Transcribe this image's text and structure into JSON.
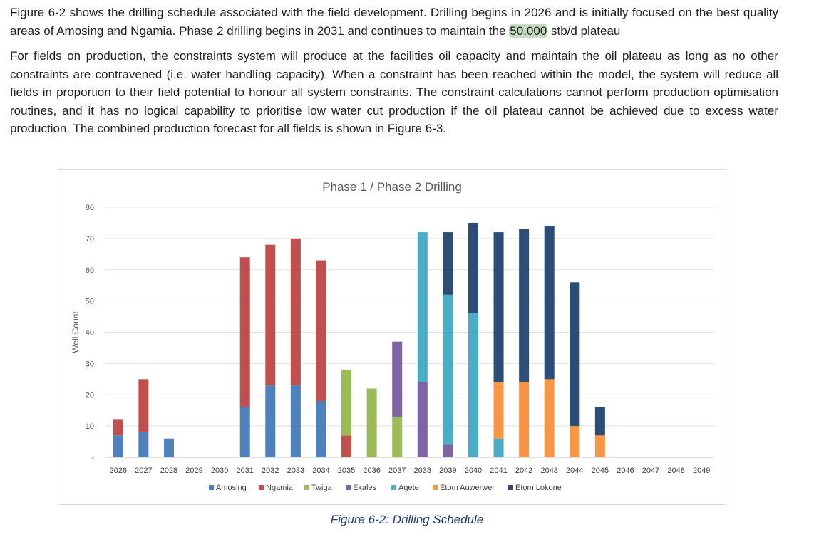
{
  "paragraphs": {
    "p1_before": "Figure 6-2 shows the drilling schedule associated with the field development.  Drilling begins in 2026 and is initially focused on the best quality areas of Amosing and Ngamia.  Phase 2 drilling begins in 2031 and continues to maintain the ",
    "p1_highlight": "50,000",
    "p1_after": " stb/d plateau",
    "p2": "For fields on production, the constraints system will produce at the facilities oil capacity and maintain the oil plateau as long as no other constraints are contravened (i.e. water handling capacity).  When a constraint has been reached within the model, the system will reduce all fields in proportion to their field potential to honour all system constraints.  The constraint calculations cannot perform production optimisation routines, and it has no logical capability to prioritise low water cut production if the oil plateau cannot be achieved due to excess water production. The combined production forecast for all fields is shown in Figure 6-3."
  },
  "caption": "Figure 6-2: Drilling Schedule",
  "chart_data": {
    "type": "bar",
    "stacked": true,
    "title": "Phase 1 / Phase 2 Drilling",
    "ylabel": "Well Count",
    "xlabel": "",
    "ylim": [
      0,
      80
    ],
    "yticks": [
      0,
      10,
      20,
      30,
      40,
      50,
      60,
      70,
      80
    ],
    "ytick_labels": [
      "-",
      "10",
      "20",
      "30",
      "40",
      "50",
      "60",
      "70",
      "80"
    ],
    "grid": true,
    "legend": "bottom",
    "categories": [
      "2026",
      "2027",
      "2028",
      "2029",
      "2030",
      "2031",
      "2032",
      "2033",
      "2034",
      "2035",
      "2036",
      "2037",
      "2038",
      "2039",
      "2040",
      "2041",
      "2042",
      "2043",
      "2044",
      "2045",
      "2046",
      "2047",
      "2048",
      "2049"
    ],
    "series": [
      {
        "name": "Amosing",
        "color": "#4f81bd",
        "values": [
          7,
          8,
          6,
          0,
          0,
          16,
          23,
          23,
          18,
          0,
          0,
          0,
          0,
          0,
          0,
          0,
          0,
          0,
          0,
          0,
          0,
          0,
          0,
          0
        ]
      },
      {
        "name": "Ngamia",
        "color": "#c0504d",
        "values": [
          5,
          17,
          0,
          0,
          0,
          48,
          45,
          47,
          45,
          7,
          0,
          0,
          0,
          0,
          0,
          0,
          0,
          0,
          0,
          0,
          0,
          0,
          0,
          0
        ]
      },
      {
        "name": "Twiga",
        "color": "#9bbb59",
        "values": [
          0,
          0,
          0,
          0,
          0,
          0,
          0,
          0,
          0,
          21,
          22,
          13,
          0,
          0,
          0,
          0,
          0,
          0,
          0,
          0,
          0,
          0,
          0,
          0
        ]
      },
      {
        "name": "Ekales",
        "color": "#8064a2",
        "values": [
          0,
          0,
          0,
          0,
          0,
          0,
          0,
          0,
          0,
          0,
          0,
          24,
          24,
          4,
          0,
          0,
          0,
          0,
          0,
          0,
          0,
          0,
          0,
          0
        ]
      },
      {
        "name": "Agete",
        "color": "#4bacc6",
        "values": [
          0,
          0,
          0,
          0,
          0,
          0,
          0,
          0,
          0,
          0,
          0,
          0,
          48,
          48,
          46,
          6,
          0,
          0,
          0,
          0,
          0,
          0,
          0,
          0
        ]
      },
      {
        "name": "Etom Auwerwer",
        "color": "#f79646",
        "values": [
          0,
          0,
          0,
          0,
          0,
          0,
          0,
          0,
          0,
          0,
          0,
          0,
          0,
          0,
          0,
          18,
          24,
          25,
          10,
          7,
          0,
          0,
          0,
          0
        ]
      },
      {
        "name": "Etom Lokone",
        "color": "#2c4d75",
        "values": [
          0,
          0,
          0,
          0,
          0,
          0,
          0,
          0,
          0,
          0,
          0,
          0,
          0,
          20,
          29,
          48,
          49,
          49,
          46,
          9,
          0,
          0,
          0,
          0
        ]
      }
    ]
  }
}
